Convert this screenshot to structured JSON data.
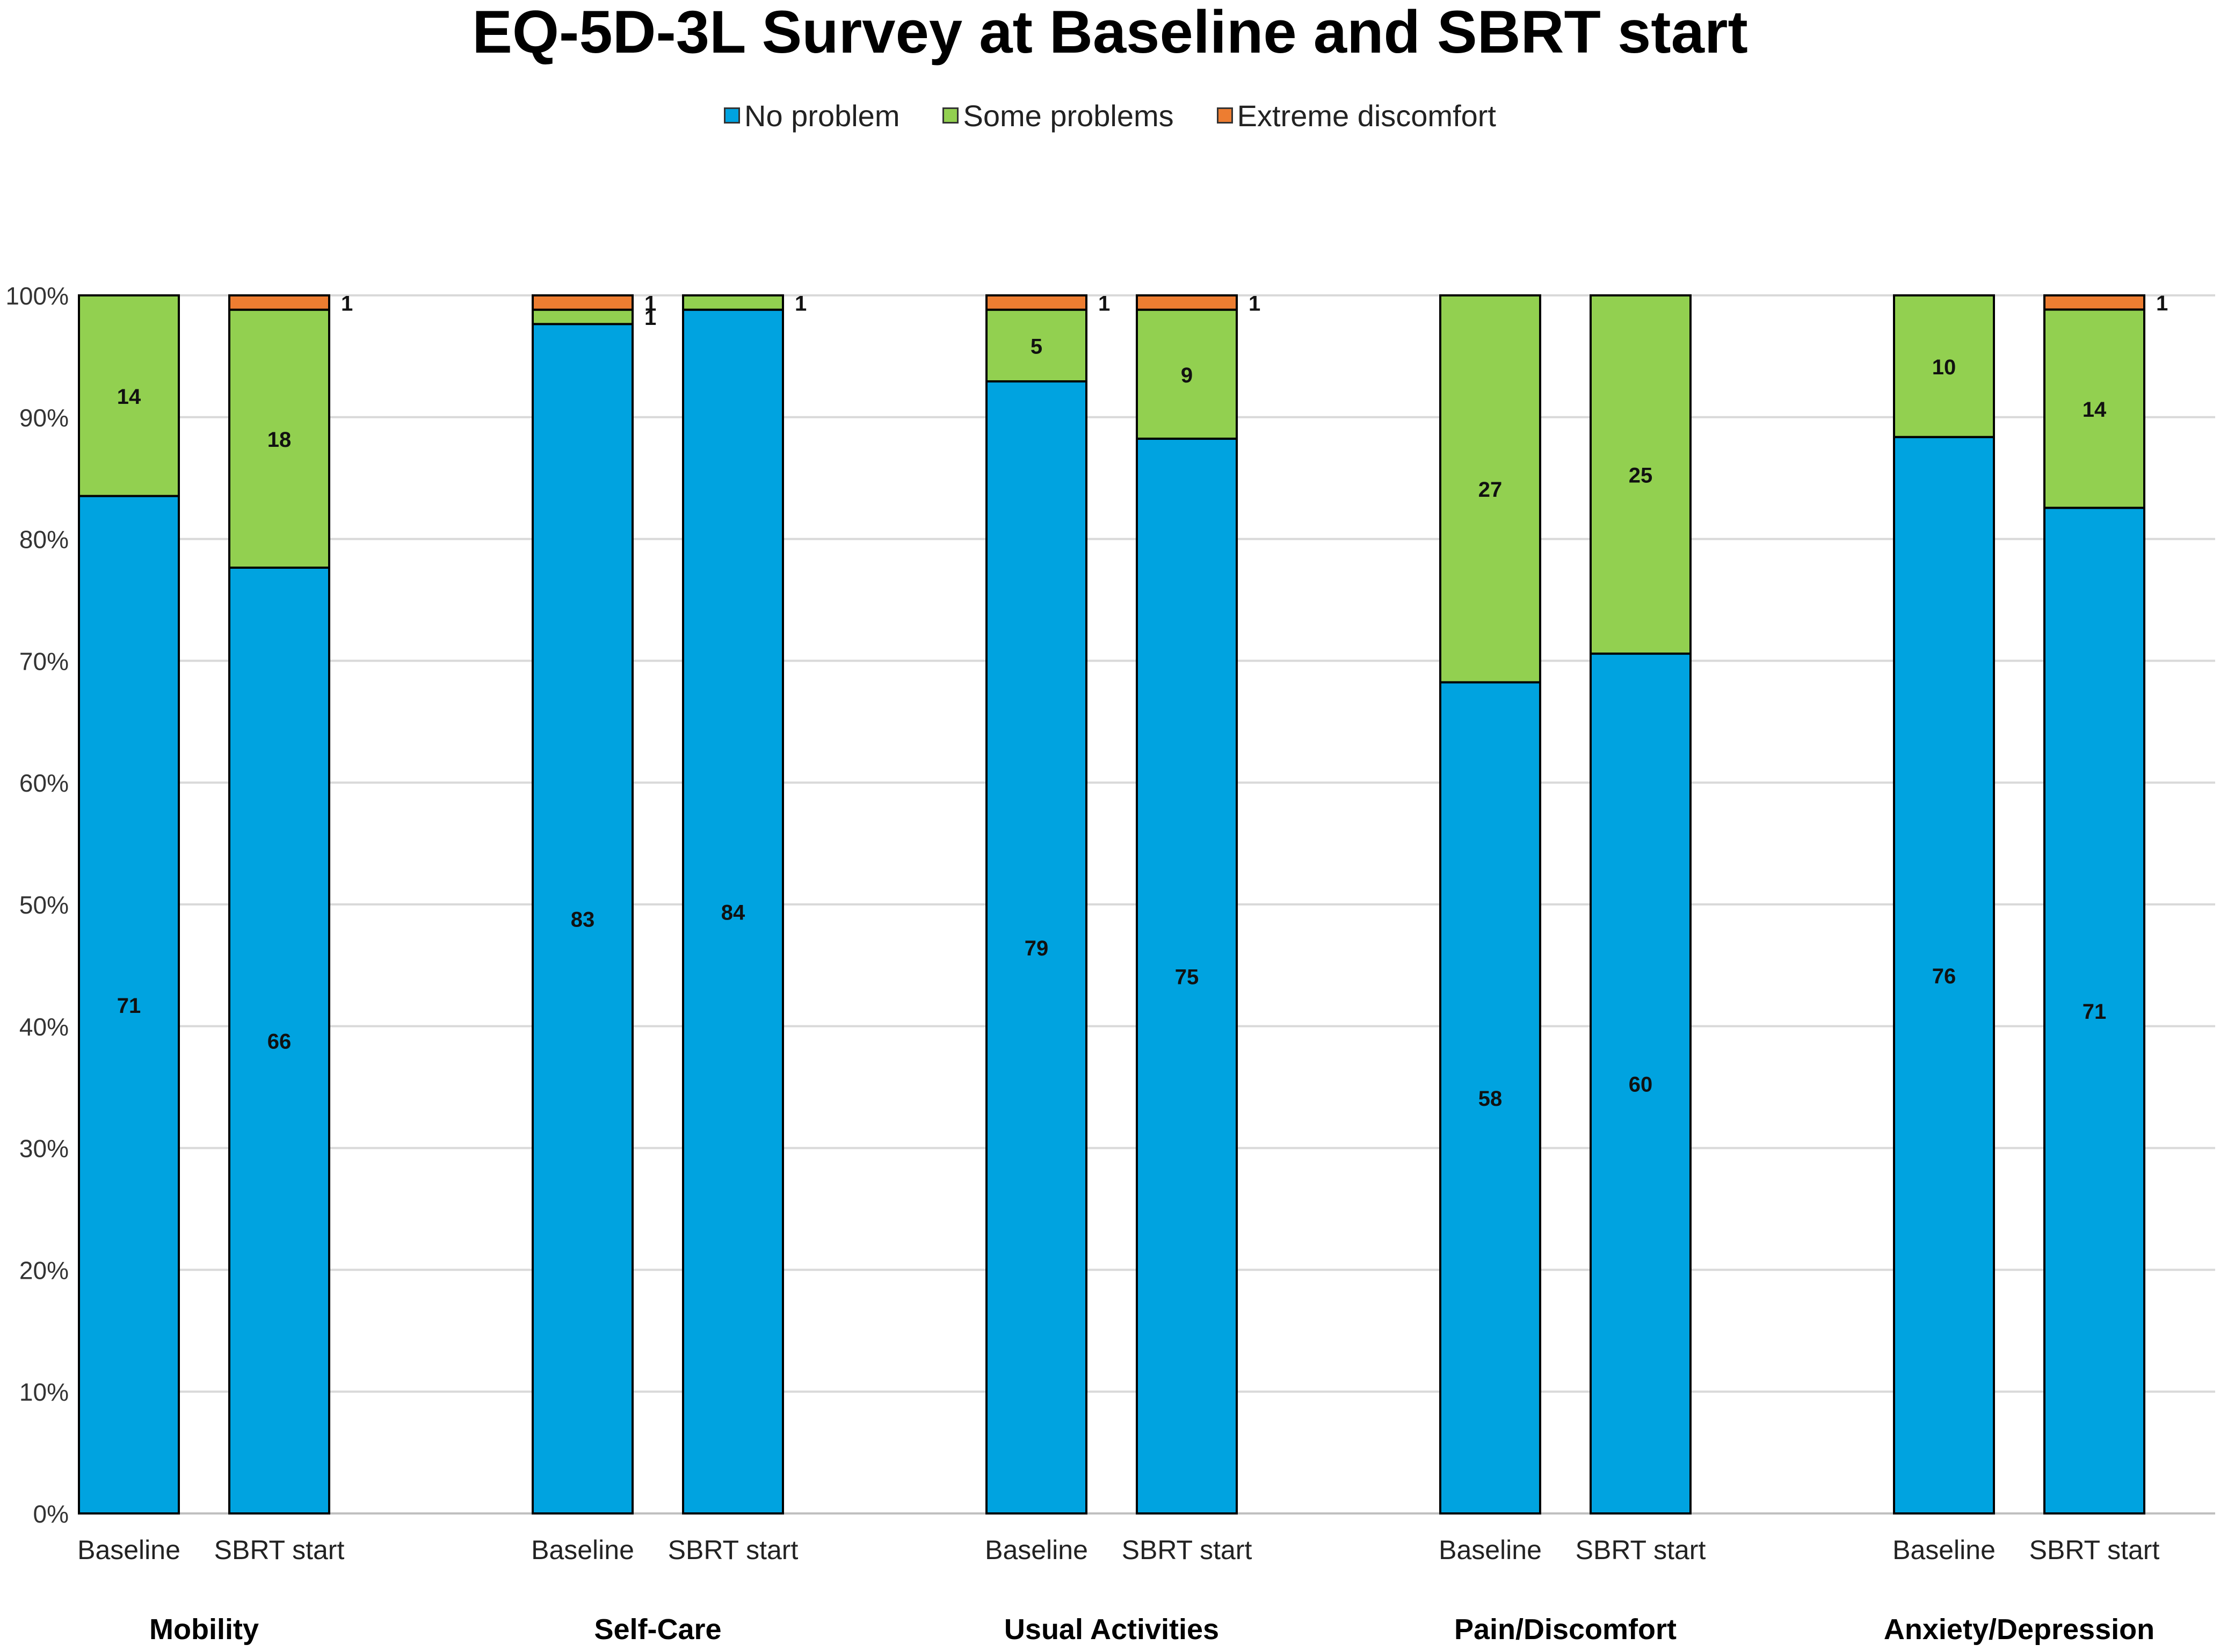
{
  "chart_data": {
    "type": "bar",
    "stacked": true,
    "percent_stacked": true,
    "title": "EQ-5D-3L Survey at Baseline and SBRT start",
    "legend_position": "top",
    "groups": [
      "Mobility",
      "Self-Care",
      "Usual Activities",
      "Pain/Discomfort",
      "Anxiety/Depression"
    ],
    "categories": [
      "Baseline",
      "SBRT start"
    ],
    "y_tick_labels": [
      "0%",
      "10%",
      "20%",
      "30%",
      "40%",
      "50%",
      "60%",
      "70%",
      "80%",
      "90%",
      "100%"
    ],
    "ylim": [
      0,
      100
    ],
    "grid": true,
    "series": [
      {
        "name": "No problem",
        "color": "#00A3E0",
        "values": [
          [
            71,
            66
          ],
          [
            83,
            84
          ],
          [
            79,
            75
          ],
          [
            58,
            60
          ],
          [
            76,
            71
          ]
        ]
      },
      {
        "name": "Some problems",
        "color": "#92D050",
        "values": [
          [
            14,
            18
          ],
          [
            1,
            1
          ],
          [
            5,
            9
          ],
          [
            27,
            25
          ],
          [
            10,
            14
          ]
        ]
      },
      {
        "name": "Extreme discomfort",
        "color": "#ED7D31",
        "values": [
          [
            0,
            1
          ],
          [
            1,
            0
          ],
          [
            1,
            1
          ],
          [
            0,
            0
          ],
          [
            0,
            1
          ]
        ]
      }
    ]
  }
}
